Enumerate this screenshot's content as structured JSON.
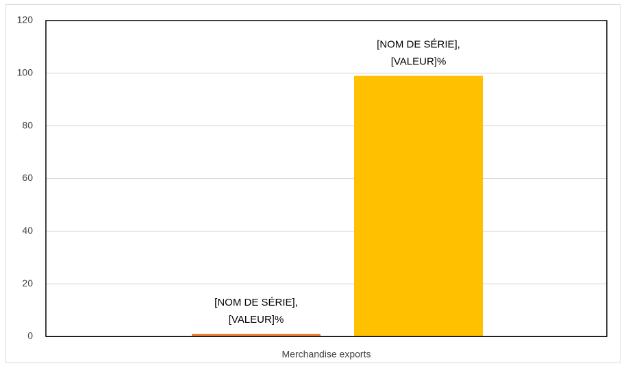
{
  "chart_data": {
    "type": "bar",
    "categories": [
      "Merchandise exports"
    ],
    "series": [
      {
        "color": "#ED7D31",
        "values": [
          1
        ],
        "value_labels": [
          [
            "[NOM DE SÉRIE],",
            "[VALEUR]%"
          ]
        ]
      },
      {
        "color": "#FFC000",
        "values": [
          99
        ],
        "value_labels": [
          [
            "[NOM DE SÉRIE],",
            "[VALEUR]%"
          ]
        ]
      }
    ],
    "ylim": [
      0,
      120
    ],
    "yticks": [
      0,
      20,
      40,
      60,
      80,
      100,
      120
    ],
    "grid": true
  }
}
